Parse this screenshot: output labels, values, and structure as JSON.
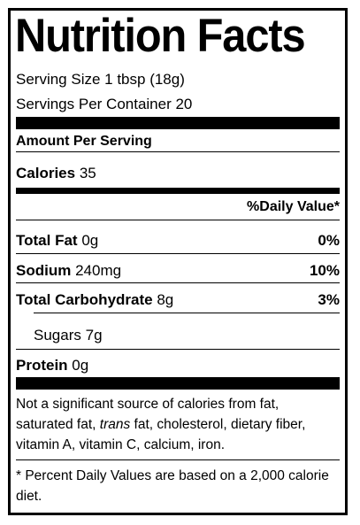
{
  "title": "Nutrition Facts",
  "serving_size": "Serving Size 1 tbsp (18g)",
  "servings_per_container": "Servings Per Container 20",
  "amount_per_serving": "Amount Per Serving",
  "calories": {
    "label": "Calories",
    "value": "35"
  },
  "daily_value_header": "%Daily Value*",
  "nutrients": [
    {
      "label": "Total Fat",
      "amount": "0g",
      "dv": "0%"
    },
    {
      "label": "Sodium",
      "amount": "240mg",
      "dv": "10%"
    },
    {
      "label": "Total Carbohydrate",
      "amount": "8g",
      "dv": "3%"
    },
    {
      "label": "Sugars",
      "amount": "7g"
    },
    {
      "label": "Protein",
      "amount": "0g"
    }
  ],
  "footnote_not_significant": {
    "pre": "Not a significant source of calories from fat, saturated fat, ",
    "italic": "trans",
    "post": " fat, cholesterol, dietary fiber, vitamin A, vitamin C, calcium, iron."
  },
  "footnote_percent": "* Percent Daily Values are based on a 2,000 calorie diet."
}
